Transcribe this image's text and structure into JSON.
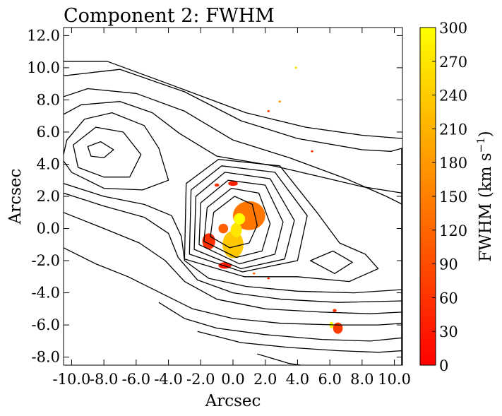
{
  "chart_data": {
    "type": "heatmap",
    "title": "Component 2: FWHM",
    "xlabel": "Arcsec",
    "ylabel": "Arcsec",
    "xlim": [
      -10.5,
      10.5
    ],
    "ylim": [
      -8.5,
      12.5
    ],
    "xticks": [
      -10.0,
      -8.0,
      -6.0,
      -4.0,
      -2.0,
      0.0,
      2.0,
      4.0,
      6.0,
      8.0,
      10.0
    ],
    "xtick_labels": [
      "-10.0",
      "-8.0",
      "-6.0",
      "-4.0",
      "-2.0",
      "0.0",
      "2.0",
      "4.0",
      "6.0",
      "8.0",
      "10.0"
    ],
    "yticks": [
      -8.0,
      -6.0,
      -4.0,
      -2.0,
      0.0,
      2.0,
      4.0,
      6.0,
      8.0,
      10.0,
      12.0
    ],
    "ytick_labels": [
      "-8.0",
      "-6.0",
      "-4.0",
      "-2.0",
      "0.0",
      "2.0",
      "4.0",
      "6.0",
      "8.0",
      "10.0",
      "12.0"
    ],
    "colorbar": {
      "label": "FWHM (km s",
      "label_sup": "−1",
      "label_end": ")",
      "range": [
        0,
        300
      ],
      "ticks": [
        0,
        30,
        60,
        90,
        120,
        150,
        180,
        210,
        240,
        270,
        300
      ],
      "tick_labels": [
        "0",
        "30",
        "60",
        "90",
        "120",
        "150",
        "180",
        "210",
        "240",
        "270",
        "300"
      ],
      "colormap": "autumn"
    },
    "colors": {
      "low": "#ff0000",
      "high": "#ffff00",
      "contour": "#000000"
    },
    "emission_blobs": [
      {
        "x": 1.0,
        "y": 0.8,
        "rx": 1.0,
        "ry": 0.9,
        "value": 140
      },
      {
        "x": 0.0,
        "y": -1.0,
        "rx": 0.65,
        "ry": 0.85,
        "value": 235
      },
      {
        "x": 0.2,
        "y": -0.1,
        "rx": 0.35,
        "ry": 0.45,
        "value": 270
      },
      {
        "x": 0.4,
        "y": 0.6,
        "rx": 0.35,
        "ry": 0.35,
        "value": 300
      },
      {
        "x": -1.5,
        "y": -0.8,
        "rx": 0.4,
        "ry": 0.5,
        "value": 55
      },
      {
        "x": -0.6,
        "y": 0.0,
        "rx": 0.3,
        "ry": 0.3,
        "value": 110
      },
      {
        "x": -0.5,
        "y": -2.3,
        "rx": 0.4,
        "ry": 0.2,
        "value": 25
      },
      {
        "x": 6.5,
        "y": -6.2,
        "rx": 0.3,
        "ry": 0.35,
        "value": 70
      },
      {
        "x": 6.1,
        "y": -6.0,
        "rx": 0.12,
        "ry": 0.2,
        "value": 290
      },
      {
        "x": 6.3,
        "y": -5.1,
        "rx": 0.12,
        "ry": 0.1,
        "value": 60
      },
      {
        "x": 0.0,
        "y": 2.8,
        "rx": 0.3,
        "ry": 0.15,
        "value": 40
      },
      {
        "x": -1.0,
        "y": 2.7,
        "rx": 0.15,
        "ry": 0.1,
        "value": 60
      },
      {
        "x": 3.9,
        "y": 10.0,
        "rx": 0.08,
        "ry": 0.06,
        "value": 260
      },
      {
        "x": 2.9,
        "y": 7.9,
        "rx": 0.08,
        "ry": 0.06,
        "value": 180
      },
      {
        "x": 2.2,
        "y": 7.3,
        "rx": 0.08,
        "ry": 0.06,
        "value": 60
      },
      {
        "x": 4.9,
        "y": 4.8,
        "rx": 0.08,
        "ry": 0.06,
        "value": 60
      },
      {
        "x": 1.3,
        "y": -2.8,
        "rx": 0.08,
        "ry": 0.06,
        "value": 120
      },
      {
        "x": 2.2,
        "y": -3.1,
        "rx": 0.08,
        "ry": 0.06,
        "value": 60
      }
    ],
    "contours": [
      {
        "closed": true,
        "points": [
          [
            -9.0,
            5.1
          ],
          [
            -8.2,
            5.4
          ],
          [
            -7.4,
            4.9
          ],
          [
            -8.0,
            4.4
          ],
          [
            -8.8,
            4.5
          ]
        ]
      },
      {
        "closed": true,
        "points": [
          [
            -9.9,
            5.2
          ],
          [
            -8.5,
            6.3
          ],
          [
            -6.8,
            6.0
          ],
          [
            -5.7,
            4.6
          ],
          [
            -6.4,
            3.2
          ],
          [
            -8.0,
            3.2
          ],
          [
            -9.6,
            3.8
          ]
        ]
      },
      {
        "closed": true,
        "points": [
          [
            -1.4,
            -0.5
          ],
          [
            -1.2,
            1.0
          ],
          [
            0.1,
            2.0
          ],
          [
            1.2,
            1.5
          ],
          [
            1.5,
            0.2
          ],
          [
            1.0,
            -0.9
          ],
          [
            -0.2,
            -1.2
          ]
        ]
      },
      {
        "closed": true,
        "points": [
          [
            -1.8,
            -0.8
          ],
          [
            -1.6,
            1.3
          ],
          [
            -0.1,
            2.5
          ],
          [
            1.6,
            2.2
          ],
          [
            2.3,
            0.3
          ],
          [
            1.8,
            -1.4
          ],
          [
            0.2,
            -1.8
          ]
        ]
      },
      {
        "closed": true,
        "points": [
          [
            -2.1,
            -1.0
          ],
          [
            -2.0,
            1.6
          ],
          [
            -0.3,
            3.0
          ],
          [
            2.0,
            2.7
          ],
          [
            3.1,
            0.4
          ],
          [
            2.6,
            -1.6
          ],
          [
            0.4,
            -2.2
          ]
        ]
      },
      {
        "closed": true,
        "points": [
          [
            -2.4,
            -1.3
          ],
          [
            -2.3,
            2.0
          ],
          [
            -0.5,
            3.5
          ],
          [
            2.3,
            3.1
          ],
          [
            3.8,
            0.5
          ],
          [
            3.2,
            -1.9
          ],
          [
            0.5,
            -2.5
          ]
        ]
      },
      {
        "closed": true,
        "points": [
          [
            -2.7,
            -1.6
          ],
          [
            -2.6,
            2.4
          ],
          [
            -0.7,
            3.9
          ],
          [
            2.6,
            3.5
          ],
          [
            4.6,
            0.8
          ],
          [
            4.0,
            -2.0
          ],
          [
            0.6,
            -2.7
          ]
        ]
      },
      {
        "closed": true,
        "points": [
          [
            -3.0,
            -1.9
          ],
          [
            -2.9,
            2.8
          ],
          [
            -0.9,
            4.3
          ],
          [
            2.9,
            3.9
          ],
          [
            5.2,
            1.0
          ],
          [
            6.6,
            -0.9
          ],
          [
            8.2,
            -1.6
          ],
          [
            9.0,
            -2.5
          ],
          [
            7.2,
            -3.3
          ],
          [
            4.0,
            -3.0
          ],
          [
            0.7,
            -3.0
          ]
        ]
      },
      {
        "closed": true,
        "points": [
          [
            4.8,
            -2.0
          ],
          [
            6.2,
            -1.4
          ],
          [
            7.4,
            -2.1
          ],
          [
            6.3,
            -2.8
          ]
        ]
      },
      {
        "closed": false,
        "points": [
          [
            -10.5,
            9.5
          ],
          [
            -7.0,
            9.9
          ],
          [
            -3.0,
            8.5
          ],
          [
            0.5,
            6.7
          ],
          [
            4.0,
            5.6
          ],
          [
            8.0,
            4.9
          ],
          [
            9.8,
            4.8
          ],
          [
            10.5,
            5.0
          ]
        ]
      },
      {
        "closed": false,
        "points": [
          [
            -10.5,
            10.4
          ],
          [
            -7.8,
            10.4
          ],
          [
            -4.0,
            9.0
          ],
          [
            0.8,
            7.2
          ],
          [
            4.5,
            6.3
          ],
          [
            8.0,
            5.8
          ],
          [
            10.5,
            5.6
          ]
        ]
      },
      {
        "closed": false,
        "points": [
          [
            -10.5,
            8.2
          ],
          [
            -9.0,
            8.7
          ],
          [
            -6.0,
            8.4
          ],
          [
            -3.0,
            7.3
          ],
          [
            0.0,
            5.5
          ],
          [
            3.5,
            4.4
          ],
          [
            7.0,
            3.1
          ],
          [
            9.5,
            2.0
          ],
          [
            10.5,
            1.5
          ]
        ]
      },
      {
        "closed": false,
        "points": [
          [
            -10.5,
            7.1
          ],
          [
            -9.4,
            7.7
          ],
          [
            -7.0,
            7.9
          ],
          [
            -5.0,
            7.2
          ],
          [
            -3.3,
            5.9
          ],
          [
            -1.0,
            4.5
          ],
          [
            2.5,
            3.9
          ],
          [
            5.5,
            3.2
          ],
          [
            8.0,
            2.6
          ],
          [
            10.5,
            2.2
          ]
        ]
      },
      {
        "closed": false,
        "points": [
          [
            -10.5,
            4.6
          ],
          [
            -10.3,
            5.5
          ],
          [
            -9.2,
            6.8
          ],
          [
            -7.5,
            7.2
          ],
          [
            -5.5,
            6.4
          ],
          [
            -4.6,
            5.0
          ],
          [
            -4.0,
            3.0
          ],
          [
            -5.6,
            2.4
          ],
          [
            -8.0,
            2.5
          ],
          [
            -10.0,
            3.5
          ],
          [
            -10.5,
            4.2
          ]
        ]
      },
      {
        "closed": false,
        "points": [
          [
            -10.5,
            2.8
          ],
          [
            -8.0,
            2.0
          ],
          [
            -5.5,
            1.5
          ],
          [
            -3.8,
            0.8
          ],
          [
            -3.2,
            -0.5
          ],
          [
            -3.0,
            -2.0
          ],
          [
            -1.5,
            -3.1
          ],
          [
            0.8,
            -3.6
          ],
          [
            4.0,
            -3.9
          ],
          [
            7.5,
            -4.0
          ],
          [
            10.5,
            -3.8
          ]
        ]
      },
      {
        "closed": false,
        "points": [
          [
            -10.5,
            2.2
          ],
          [
            -8.0,
            1.4
          ],
          [
            -5.5,
            0.7
          ],
          [
            -4.0,
            -0.3
          ],
          [
            -3.4,
            -1.8
          ],
          [
            -2.2,
            -3.2
          ],
          [
            0.0,
            -4.0
          ],
          [
            3.0,
            -4.4
          ],
          [
            6.5,
            -4.6
          ],
          [
            10.5,
            -4.5
          ]
        ]
      },
      {
        "closed": false,
        "points": [
          [
            -10.5,
            1.0
          ],
          [
            -8.0,
            0.0
          ],
          [
            -5.8,
            -0.9
          ],
          [
            -4.2,
            -2.0
          ],
          [
            -3.0,
            -3.3
          ],
          [
            -1.0,
            -4.4
          ],
          [
            2.0,
            -5.0
          ],
          [
            5.5,
            -5.2
          ],
          [
            8.5,
            -5.3
          ],
          [
            10.5,
            -5.2
          ]
        ]
      },
      {
        "closed": false,
        "points": [
          [
            -10.5,
            -1.2
          ],
          [
            -8.5,
            -2.2
          ],
          [
            -6.5,
            -3.0
          ],
          [
            -4.5,
            -4.0
          ],
          [
            -2.5,
            -5.0
          ],
          [
            0.0,
            -5.6
          ],
          [
            3.0,
            -5.9
          ],
          [
            6.5,
            -6.0
          ],
          [
            9.0,
            -6.0
          ],
          [
            10.5,
            -5.9
          ]
        ]
      },
      {
        "closed": false,
        "points": [
          [
            -4.6,
            -4.6
          ],
          [
            -3.0,
            -5.6
          ],
          [
            -1.0,
            -6.2
          ],
          [
            2.0,
            -6.6
          ],
          [
            5.5,
            -6.9
          ],
          [
            8.5,
            -7.0
          ],
          [
            10.5,
            -6.8
          ]
        ]
      },
      {
        "closed": false,
        "points": [
          [
            -2.2,
            -6.4
          ],
          [
            0.5,
            -7.1
          ],
          [
            3.5,
            -7.4
          ],
          [
            6.5,
            -7.6
          ],
          [
            9.0,
            -7.7
          ],
          [
            10.5,
            -7.6
          ]
        ]
      },
      {
        "closed": false,
        "points": [
          [
            1.5,
            -7.8
          ],
          [
            3.5,
            -8.4
          ],
          [
            4.2,
            -8.5
          ]
        ]
      },
      {
        "closed": false,
        "points": [
          [
            10.45,
            5.0
          ],
          [
            10.45,
            -8.5
          ]
        ]
      }
    ]
  }
}
